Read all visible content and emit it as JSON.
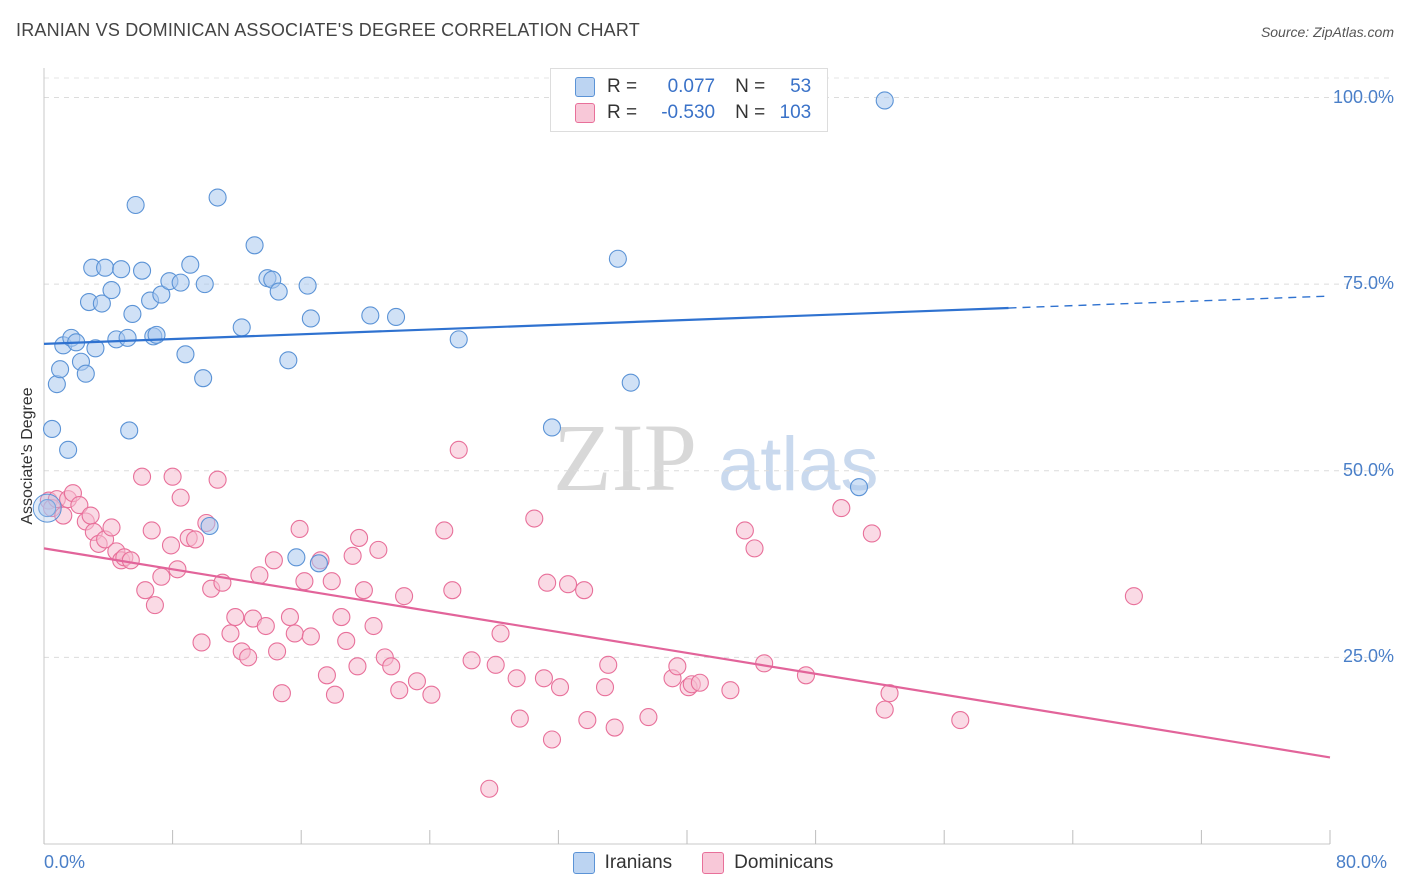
{
  "title": "IRANIAN VS DOMINICAN ASSOCIATE'S DEGREE CORRELATION CHART",
  "source": "Source: ZipAtlas.com",
  "watermark": {
    "zip": "ZIP",
    "atlas": "atlas"
  },
  "legend_stats": [
    {
      "r_label": "R =",
      "r_value": "0.077",
      "n_label": "N =",
      "n_value": "53"
    },
    {
      "r_label": "R =",
      "r_value": "-0.530",
      "n_label": "N =",
      "n_value": "103"
    }
  ],
  "bottom_legend": [
    "Iranians",
    "Dominicans"
  ],
  "colors": {
    "iranian": "#5b93d6",
    "iranian_fill": "#a9c8ee",
    "dominican": "#e8709a",
    "dominican_fill": "#f6bcd0",
    "tick": "#4a7fc8"
  },
  "chart_data": {
    "type": "scatter",
    "title": "IRANIAN VS DOMINICAN ASSOCIATE'S DEGREE CORRELATION CHART",
    "xlabel": "",
    "ylabel": "Associate's Degree",
    "xlim": [
      0,
      80
    ],
    "ylim": [
      0,
      102
    ],
    "x_tick_labels": [
      "0.0%",
      "80.0%"
    ],
    "y_ticks": [
      25,
      50,
      75,
      100
    ],
    "y_tick_labels": [
      "25.0%",
      "50.0%",
      "75.0%",
      "100.0%"
    ],
    "grid": true,
    "legend_position": "top-center",
    "series": [
      {
        "name": "Iranians",
        "r": 0.077,
        "n": 53,
        "trend": {
          "x": [
            0,
            60,
            80
          ],
          "y": [
            67.0,
            71.8,
            73.4
          ],
          "dashed_from_x": 60
        },
        "points": [
          [
            0.2,
            45
          ],
          [
            0.5,
            55.6
          ],
          [
            0.8,
            61.6
          ],
          [
            1.0,
            63.6
          ],
          [
            1.2,
            66.8
          ],
          [
            1.5,
            52.8
          ],
          [
            1.7,
            67.8
          ],
          [
            2.0,
            67.2
          ],
          [
            2.3,
            64.6
          ],
          [
            2.6,
            63.0
          ],
          [
            2.8,
            72.6
          ],
          [
            3.0,
            77.2
          ],
          [
            3.2,
            66.4
          ],
          [
            3.6,
            72.4
          ],
          [
            3.8,
            77.2
          ],
          [
            4.2,
            74.2
          ],
          [
            4.5,
            67.6
          ],
          [
            4.8,
            77.0
          ],
          [
            5.2,
            67.8
          ],
          [
            5.3,
            55.4
          ],
          [
            5.5,
            71.0
          ],
          [
            5.7,
            85.6
          ],
          [
            6.1,
            76.8
          ],
          [
            6.6,
            72.8
          ],
          [
            6.8,
            68.0
          ],
          [
            7.0,
            68.2
          ],
          [
            7.3,
            73.6
          ],
          [
            7.8,
            75.4
          ],
          [
            8.5,
            75.2
          ],
          [
            8.8,
            65.6
          ],
          [
            9.1,
            77.6
          ],
          [
            9.9,
            62.4
          ],
          [
            10.0,
            75.0
          ],
          [
            10.3,
            42.6
          ],
          [
            10.8,
            86.6
          ],
          [
            12.3,
            69.2
          ],
          [
            13.1,
            80.2
          ],
          [
            13.9,
            75.8
          ],
          [
            14.2,
            75.6
          ],
          [
            14.6,
            74.0
          ],
          [
            15.2,
            64.8
          ],
          [
            15.7,
            38.4
          ],
          [
            16.4,
            74.8
          ],
          [
            16.6,
            70.4
          ],
          [
            17.1,
            37.6
          ],
          [
            20.3,
            70.8
          ],
          [
            21.9,
            70.6
          ],
          [
            25.8,
            67.6
          ],
          [
            31.6,
            55.8
          ],
          [
            35.7,
            78.4
          ],
          [
            36.5,
            61.8
          ],
          [
            50.7,
            47.8
          ],
          [
            52.3,
            99.6
          ]
        ]
      },
      {
        "name": "Dominicans",
        "r": -0.53,
        "n": 103,
        "trend": {
          "x": [
            0,
            80
          ],
          "y": [
            39.6,
            11.6
          ]
        },
        "points": [
          [
            0.3,
            46
          ],
          [
            0.5,
            45
          ],
          [
            0.8,
            46.2
          ],
          [
            1.2,
            44
          ],
          [
            1.5,
            46.2
          ],
          [
            1.8,
            47
          ],
          [
            2.2,
            45.4
          ],
          [
            2.6,
            43.2
          ],
          [
            2.9,
            44
          ],
          [
            3.1,
            41.8
          ],
          [
            3.4,
            40.2
          ],
          [
            3.8,
            40.8
          ],
          [
            4.2,
            42.4
          ],
          [
            4.5,
            39.2
          ],
          [
            4.8,
            38
          ],
          [
            5.0,
            38.4
          ],
          [
            5.4,
            38
          ],
          [
            6.1,
            49.2
          ],
          [
            6.3,
            34
          ],
          [
            6.7,
            42
          ],
          [
            6.9,
            32
          ],
          [
            7.3,
            35.8
          ],
          [
            7.9,
            40
          ],
          [
            8.0,
            49.2
          ],
          [
            8.3,
            36.8
          ],
          [
            8.5,
            46.4
          ],
          [
            9.0,
            41
          ],
          [
            9.4,
            40.8
          ],
          [
            9.8,
            27
          ],
          [
            10.1,
            43
          ],
          [
            10.4,
            34.2
          ],
          [
            10.8,
            48.8
          ],
          [
            11.1,
            35
          ],
          [
            11.6,
            28.2
          ],
          [
            11.9,
            30.4
          ],
          [
            12.3,
            25.8
          ],
          [
            12.7,
            25
          ],
          [
            13.0,
            30.2
          ],
          [
            13.4,
            36
          ],
          [
            13.8,
            29.2
          ],
          [
            14.3,
            38
          ],
          [
            14.5,
            25.8
          ],
          [
            14.8,
            20.2
          ],
          [
            15.3,
            30.4
          ],
          [
            15.6,
            28.2
          ],
          [
            15.9,
            42.2
          ],
          [
            16.2,
            35.2
          ],
          [
            16.6,
            27.8
          ],
          [
            17.2,
            38
          ],
          [
            17.6,
            22.6
          ],
          [
            17.9,
            35.2
          ],
          [
            18.1,
            20
          ],
          [
            18.5,
            30.4
          ],
          [
            18.8,
            27.2
          ],
          [
            19.2,
            38.6
          ],
          [
            19.5,
            23.8
          ],
          [
            19.6,
            41
          ],
          [
            19.9,
            34
          ],
          [
            20.5,
            29.2
          ],
          [
            20.8,
            39.4
          ],
          [
            21.2,
            25
          ],
          [
            21.6,
            23.8
          ],
          [
            22.1,
            20.6
          ],
          [
            22.4,
            33.2
          ],
          [
            23.2,
            21.8
          ],
          [
            24.1,
            20
          ],
          [
            24.9,
            42
          ],
          [
            25.4,
            34
          ],
          [
            25.8,
            52.8
          ],
          [
            26.6,
            24.6
          ],
          [
            27.7,
            7.4
          ],
          [
            28.1,
            24
          ],
          [
            28.4,
            28.2
          ],
          [
            29.4,
            22.2
          ],
          [
            29.6,
            16.8
          ],
          [
            30.5,
            43.6
          ],
          [
            31.1,
            22.2
          ],
          [
            31.3,
            35
          ],
          [
            31.6,
            14
          ],
          [
            32.1,
            21
          ],
          [
            32.6,
            34.8
          ],
          [
            33.6,
            34
          ],
          [
            33.8,
            16.6
          ],
          [
            34.9,
            21
          ],
          [
            35.1,
            24
          ],
          [
            35.5,
            15.6
          ],
          [
            37.6,
            17
          ],
          [
            39.1,
            22.2
          ],
          [
            39.4,
            23.8
          ],
          [
            40.1,
            21
          ],
          [
            40.3,
            21.4
          ],
          [
            40.8,
            21.6
          ],
          [
            42.7,
            20.6
          ],
          [
            43.6,
            42
          ],
          [
            44.2,
            39.6
          ],
          [
            44.8,
            24.2
          ],
          [
            47.4,
            22.6
          ],
          [
            49.6,
            45
          ],
          [
            51.5,
            41.6
          ],
          [
            52.3,
            18
          ],
          [
            52.6,
            20.2
          ],
          [
            57.0,
            16.6
          ],
          [
            67.8,
            33.2
          ]
        ]
      }
    ]
  }
}
